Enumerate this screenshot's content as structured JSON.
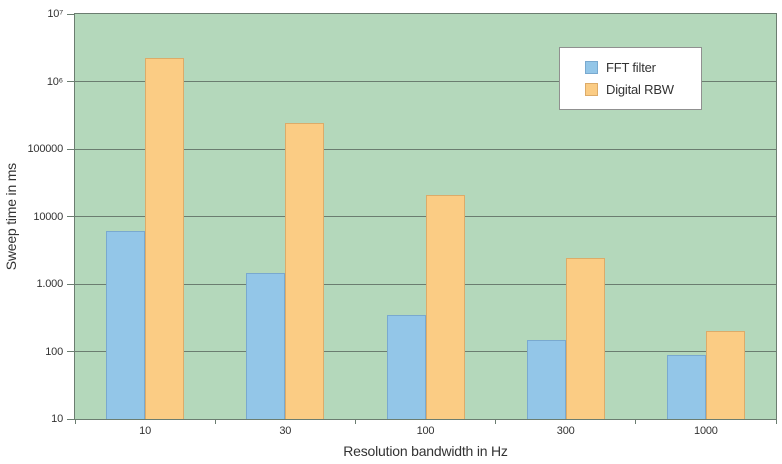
{
  "chart_data": {
    "type": "bar",
    "title": "",
    "xlabel": "Resolution bandwidth in Hz",
    "ylabel": "Sweep time in ms",
    "categories": [
      "10",
      "30",
      "100",
      "300",
      "1000"
    ],
    "series": [
      {
        "name": "FFT filter",
        "color": "#93c6e8",
        "border_color": "#79a9cf",
        "values": [
          6000,
          1450,
          350,
          150,
          90
        ]
      },
      {
        "name": "Digital RBW",
        "color": "#fbcc84",
        "border_color": "#dcab69",
        "values": [
          2200000,
          240000,
          21000,
          2400,
          200
        ]
      }
    ],
    "y_axis": {
      "scale": "log",
      "min": 10,
      "max": 10000000,
      "tick_labels": [
        "10⁷",
        "10⁶",
        "100000",
        "10000",
        "1.000",
        "100",
        "10"
      ]
    },
    "grid": true,
    "legend_position": "top-right",
    "plot_bg_color": "#b4d8bb",
    "gridline_color": "#6b7d70"
  }
}
